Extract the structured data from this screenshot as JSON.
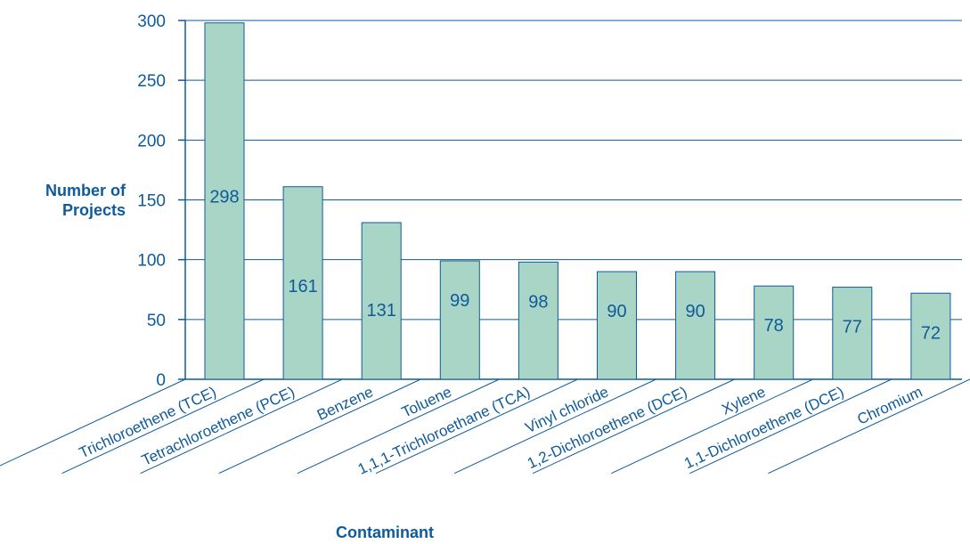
{
  "chart_data": {
    "type": "bar",
    "title": "",
    "ylabel_lines": [
      "Number of",
      "Projects"
    ],
    "xlabel": "Contaminant",
    "categories": [
      "Trichloroethene (TCE)",
      "Tetrachloroethene (PCE)",
      "Benzene",
      "Toluene",
      "1,1,1-Trichloroethane (TCA)",
      "Vinyl chloride",
      "1,2-Dichloroethene (DCE)",
      "Xylene",
      "1,1-Dichloroethene (DCE)",
      "Chromium"
    ],
    "values": [
      298,
      161,
      131,
      99,
      98,
      90,
      90,
      78,
      77,
      72
    ],
    "data_labels": [
      "298",
      "161",
      "131",
      "99",
      "98",
      "90",
      "90",
      "78",
      "77",
      "72"
    ],
    "ylim": [
      0,
      300
    ],
    "yticks": [
      0,
      50,
      100,
      150,
      200,
      250,
      300
    ],
    "ytick_labels": [
      "0",
      "50",
      "100",
      "150",
      "200",
      "250",
      "300"
    ],
    "grid": true,
    "legend": "none",
    "colors": {
      "bar_fill": "#a8d5c5",
      "bar_stroke": "#0f5a9a",
      "grid": "#0f5a9a",
      "text": "#0f5a9a"
    }
  }
}
